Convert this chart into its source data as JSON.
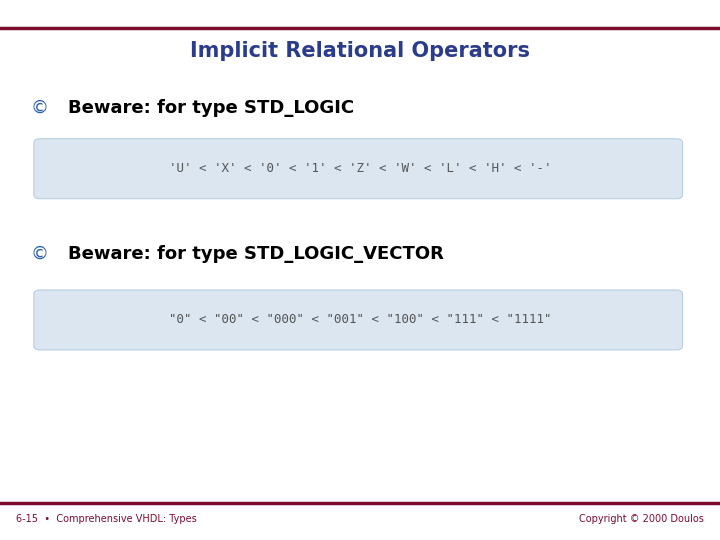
{
  "title": "Implicit Relational Operators",
  "title_color": "#2B3C8B",
  "title_fontsize": 15,
  "bullet1_text": "Beware: for type STD_LOGIC",
  "bullet2_text": "Beware: for type STD_LOGIC_VECTOR",
  "code1": "'U' < 'X' < '0' < '1' < 'Z' < 'W' < 'L' < 'H' < '-'",
  "code2": "\"0\" < \"00\" < \"000\" < \"001\" < \"100\" < \"111\" < \"1111\"",
  "code_bg": "#dce6f1",
  "code_border": "#b8cfe0",
  "footer_left": "6-15  •  Comprehensive VHDL: Types",
  "footer_right": "Copyright © 2000 Doulos",
  "top_line_color": "#7B0C2E",
  "bg_color": "#ffffff",
  "bullet_color": "#2B5CA6",
  "bullet_text_color": "#000000",
  "footer_color": "#7B0C2E",
  "code_text_color": "#555555",
  "bullet_fontsize": 13,
  "bullet_text_fontsize": 13,
  "code_fontsize": 9,
  "footer_fontsize": 7
}
